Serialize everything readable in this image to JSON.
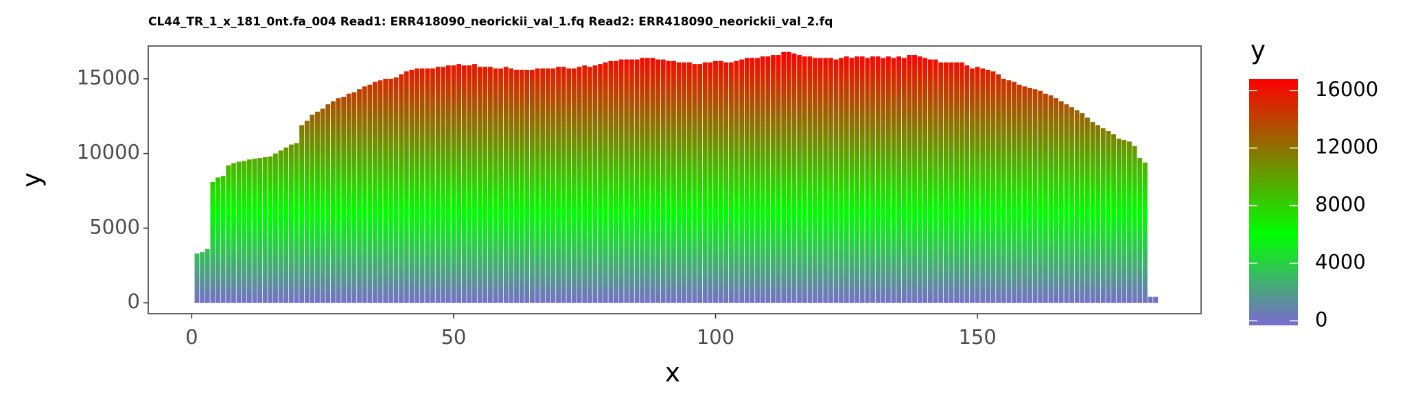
{
  "chart_data": {
    "type": "bar",
    "title": "CL44_TR_1_x_181_0nt.fa_004 Read1: ERR418090_neorickii_val_1.fq Read2: ERR418090_neorickii_val_2.fq",
    "x_label": "x",
    "y_label": "y",
    "x": [
      1,
      2,
      3,
      4,
      5,
      6,
      7,
      8,
      9,
      10,
      11,
      12,
      13,
      14,
      15,
      16,
      17,
      18,
      19,
      20,
      21,
      22,
      23,
      24,
      25,
      26,
      27,
      28,
      29,
      30,
      31,
      32,
      33,
      34,
      35,
      36,
      37,
      38,
      39,
      40,
      41,
      42,
      43,
      44,
      45,
      46,
      47,
      48,
      49,
      50,
      51,
      52,
      53,
      54,
      55,
      56,
      57,
      58,
      59,
      60,
      61,
      62,
      63,
      64,
      65,
      66,
      67,
      68,
      69,
      70,
      71,
      72,
      73,
      74,
      75,
      76,
      77,
      78,
      79,
      80,
      81,
      82,
      83,
      84,
      85,
      86,
      87,
      88,
      89,
      90,
      91,
      92,
      93,
      94,
      95,
      96,
      97,
      98,
      99,
      100,
      101,
      102,
      103,
      104,
      105,
      106,
      107,
      108,
      109,
      110,
      111,
      112,
      113,
      114,
      115,
      116,
      117,
      118,
      119,
      120,
      121,
      122,
      123,
      124,
      125,
      126,
      127,
      128,
      129,
      130,
      131,
      132,
      133,
      134,
      135,
      136,
      137,
      138,
      139,
      140,
      141,
      142,
      143,
      144,
      145,
      146,
      147,
      148,
      149,
      150,
      151,
      152,
      153,
      154,
      155,
      156,
      157,
      158,
      159,
      160,
      161,
      162,
      163,
      164,
      165,
      166,
      167,
      168,
      169,
      170,
      171,
      172,
      173,
      174,
      175,
      176,
      177,
      178,
      179,
      180,
      181,
      182,
      183,
      184
    ],
    "values": [
      3300,
      3400,
      3600,
      8100,
      8400,
      8500,
      9200,
      9350,
      9450,
      9500,
      9600,
      9650,
      9700,
      9750,
      9800,
      10000,
      10200,
      10400,
      10600,
      10700,
      11900,
      12200,
      12600,
      12800,
      13000,
      13300,
      13500,
      13700,
      13800,
      14000,
      14100,
      14300,
      14500,
      14600,
      14800,
      14900,
      15000,
      15000,
      15100,
      15300,
      15500,
      15600,
      15700,
      15700,
      15700,
      15700,
      15800,
      15800,
      15900,
      15900,
      16000,
      15900,
      15900,
      16000,
      15800,
      15800,
      15800,
      15700,
      15700,
      15800,
      15700,
      15600,
      15600,
      15600,
      15600,
      15700,
      15700,
      15700,
      15700,
      15800,
      15800,
      15700,
      15700,
      15800,
      15900,
      15800,
      15900,
      16000,
      16100,
      16200,
      16200,
      16300,
      16300,
      16300,
      16300,
      16400,
      16400,
      16400,
      16300,
      16300,
      16200,
      16200,
      16100,
      16100,
      16100,
      16000,
      16000,
      16100,
      16100,
      16200,
      16200,
      16100,
      16100,
      16200,
      16300,
      16400,
      16400,
      16400,
      16500,
      16500,
      16600,
      16600,
      16800,
      16800,
      16700,
      16600,
      16500,
      16500,
      16400,
      16400,
      16400,
      16400,
      16300,
      16400,
      16500,
      16400,
      16500,
      16500,
      16400,
      16500,
      16500,
      16400,
      16500,
      16400,
      16500,
      16400,
      16600,
      16600,
      16500,
      16400,
      16300,
      16300,
      16100,
      16100,
      16100,
      16100,
      16100,
      15900,
      15700,
      15800,
      15700,
      15600,
      15500,
      15300,
      15000,
      14900,
      14800,
      14600,
      14500,
      14400,
      14300,
      14200,
      14000,
      13900,
      13700,
      13500,
      13300,
      13100,
      12900,
      12700,
      12400,
      12100,
      11900,
      11700,
      11500,
      11300,
      11000,
      10900,
      10800,
      10500,
      9700,
      9400,
      400,
      400
    ],
    "xlim": [
      -8.3,
      192.7
    ],
    "ylim": [
      -730,
      17200
    ],
    "xticks": [
      0,
      50,
      100,
      150
    ],
    "yticks": [
      0,
      5000,
      10000,
      15000
    ],
    "colorbar": {
      "title": "y",
      "lim": [
        -316,
        16800
      ],
      "ticks": [
        0,
        4000,
        8000,
        12000,
        16000
      ],
      "stops": [
        0,
        6000,
        16800
      ],
      "colors": [
        "#7570c8",
        "#00ff00",
        "#ff0000"
      ]
    }
  }
}
